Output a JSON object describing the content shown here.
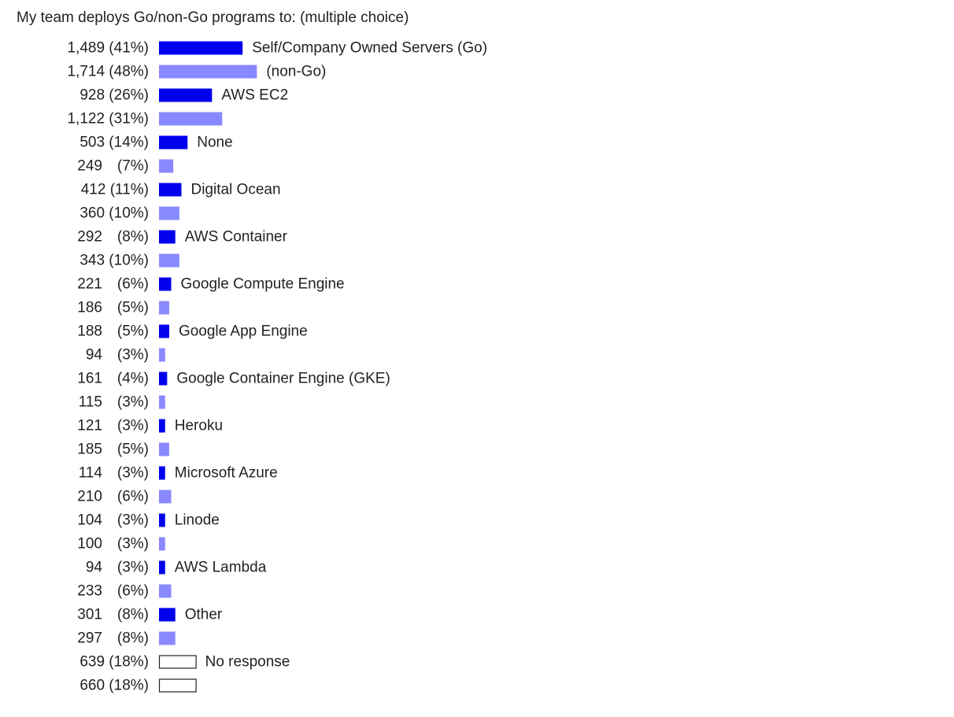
{
  "chart_data": {
    "type": "bar",
    "orientation": "horizontal",
    "title": "My team deploys Go/non-Go programs to: (multiple choice)",
    "value_unit": "respondents",
    "colors": {
      "go": "#0000ee",
      "non_go": "#8888ff",
      "no_response": "#ffffff"
    },
    "rows": [
      {
        "count": "1,489",
        "pct": "(41%)",
        "value": 1489,
        "percent": 41,
        "group": "go",
        "label": "Self/Company Owned Servers (Go)"
      },
      {
        "count": "1,714",
        "pct": "(48%)",
        "value": 1714,
        "percent": 48,
        "group": "non_go",
        "label": "(non-Go)"
      },
      {
        "count": "928",
        "pct": "(26%)",
        "value": 928,
        "percent": 26,
        "group": "go",
        "label": "AWS EC2"
      },
      {
        "count": "1,122",
        "pct": "(31%)",
        "value": 1122,
        "percent": 31,
        "group": "non_go",
        "label": ""
      },
      {
        "count": "503",
        "pct": "(14%)",
        "value": 503,
        "percent": 14,
        "group": "go",
        "label": "None"
      },
      {
        "count": "249",
        "pct": "(7%)",
        "value": 249,
        "percent": 7,
        "group": "non_go",
        "label": ""
      },
      {
        "count": "412",
        "pct": "(11%)",
        "value": 412,
        "percent": 11,
        "group": "go",
        "label": "Digital Ocean"
      },
      {
        "count": "360",
        "pct": "(10%)",
        "value": 360,
        "percent": 10,
        "group": "non_go",
        "label": ""
      },
      {
        "count": "292",
        "pct": "(8%)",
        "value": 292,
        "percent": 8,
        "group": "go",
        "label": "AWS Container"
      },
      {
        "count": "343",
        "pct": "(10%)",
        "value": 343,
        "percent": 10,
        "group": "non_go",
        "label": ""
      },
      {
        "count": "221",
        "pct": "(6%)",
        "value": 221,
        "percent": 6,
        "group": "go",
        "label": "Google Compute Engine"
      },
      {
        "count": "186",
        "pct": "(5%)",
        "value": 186,
        "percent": 5,
        "group": "non_go",
        "label": ""
      },
      {
        "count": "188",
        "pct": "(5%)",
        "value": 188,
        "percent": 5,
        "group": "go",
        "label": "Google App Engine"
      },
      {
        "count": "94",
        "pct": "(3%)",
        "value": 94,
        "percent": 3,
        "group": "non_go",
        "label": ""
      },
      {
        "count": "161",
        "pct": "(4%)",
        "value": 161,
        "percent": 4,
        "group": "go",
        "label": "Google Container Engine (GKE)"
      },
      {
        "count": "115",
        "pct": "(3%)",
        "value": 115,
        "percent": 3,
        "group": "non_go",
        "label": ""
      },
      {
        "count": "121",
        "pct": "(3%)",
        "value": 121,
        "percent": 3,
        "group": "go",
        "label": "Heroku"
      },
      {
        "count": "185",
        "pct": "(5%)",
        "value": 185,
        "percent": 5,
        "group": "non_go",
        "label": ""
      },
      {
        "count": "114",
        "pct": "(3%)",
        "value": 114,
        "percent": 3,
        "group": "go",
        "label": "Microsoft Azure"
      },
      {
        "count": "210",
        "pct": "(6%)",
        "value": 210,
        "percent": 6,
        "group": "non_go",
        "label": ""
      },
      {
        "count": "104",
        "pct": "(3%)",
        "value": 104,
        "percent": 3,
        "group": "go",
        "label": "Linode"
      },
      {
        "count": "100",
        "pct": "(3%)",
        "value": 100,
        "percent": 3,
        "group": "non_go",
        "label": ""
      },
      {
        "count": "94",
        "pct": "(3%)",
        "value": 94,
        "percent": 3,
        "group": "go",
        "label": "AWS Lambda"
      },
      {
        "count": "233",
        "pct": "(6%)",
        "value": 233,
        "percent": 6,
        "group": "non_go",
        "label": ""
      },
      {
        "count": "301",
        "pct": "(8%)",
        "value": 301,
        "percent": 8,
        "group": "go",
        "label": "Other"
      },
      {
        "count": "297",
        "pct": "(8%)",
        "value": 297,
        "percent": 8,
        "group": "non_go",
        "label": ""
      },
      {
        "count": "639",
        "pct": "(18%)",
        "value": 639,
        "percent": 18,
        "group": "no_response",
        "label": "No response"
      },
      {
        "count": "660",
        "pct": "(18%)",
        "value": 660,
        "percent": 18,
        "group": "no_response",
        "label": ""
      }
    ]
  }
}
